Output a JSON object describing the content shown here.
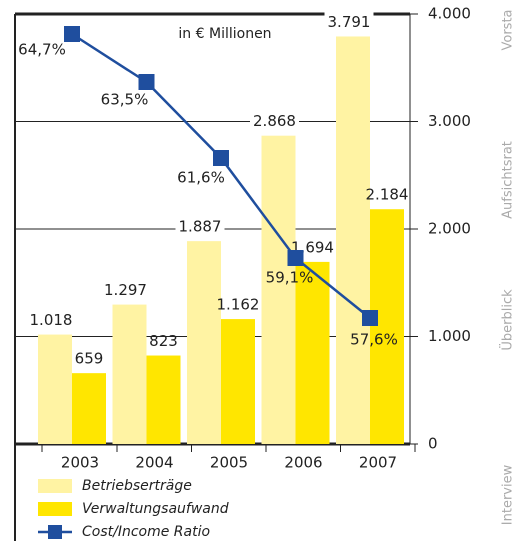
{
  "chart_data": {
    "type": "bar_line",
    "subtitle": "in € Millionen",
    "categories": [
      "2003",
      "2004",
      "2005",
      "2006",
      "2007"
    ],
    "series": [
      {
        "name": "Betriebserträge",
        "color": "#fff3a3",
        "values": [
          1018,
          1297,
          1887,
          2868,
          3791
        ],
        "value_labels": [
          "1.018",
          "1.297",
          "1.887",
          "2.868",
          "3.791"
        ]
      },
      {
        "name": "Verwaltungsaufwand",
        "color": "#ffe600",
        "values": [
          659,
          823,
          1162,
          1694,
          2184
        ],
        "value_labels": [
          "659",
          "823",
          "1.162",
          "1.694",
          "2.184"
        ]
      },
      {
        "name": "Cost/Income Ratio",
        "color": "#1f4e9e",
        "type": "line",
        "axis": "y2",
        "values": [
          64.7,
          63.5,
          61.6,
          59.1,
          57.6
        ],
        "value_labels": [
          "64,7%",
          "63,5%",
          "61,6%",
          "59,1%",
          "57,6%"
        ]
      }
    ],
    "ylim": [
      0,
      4000
    ],
    "yticks": [
      0,
      {
        "value": 1000,
        "label": "1.000"
      },
      {
        "value": 2000,
        "label": "2.000"
      },
      {
        "value": 3000,
        "label": "3.000"
      },
      {
        "value": 4000,
        "label": "4.000"
      }
    ],
    "y2lim": [
      54.45,
      65.2
    ],
    "grid": true
  },
  "side_tabs": [
    "Vorsta",
    "Aufsichtsrat",
    "Überblick",
    "Interview"
  ]
}
